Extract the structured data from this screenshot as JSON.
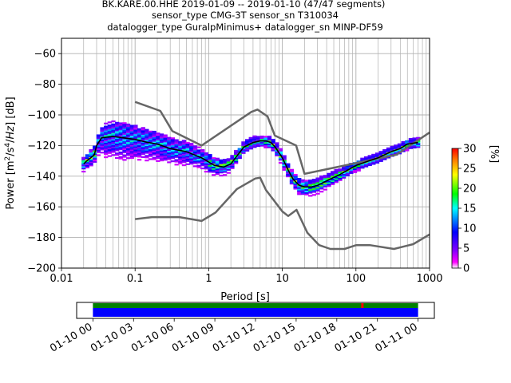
{
  "title": {
    "line1": "BK.KARE.00.HHE   2019-01-09 -- 2019-01-10  (47/47 segments)",
    "line2": "sensor_type CMG-3T sensor_sn T310034",
    "line3": "datalogger_type GuralpMinimus+ datalogger_sn MINP-DF59"
  },
  "chart_data": {
    "type": "heatmap",
    "xlabel": "Period [s]",
    "ylabel": "Power [m²/s⁴/Hz] [dB]",
    "xscale": "log",
    "xlim": [
      0.01,
      1000
    ],
    "ylim": [
      -200,
      -50
    ],
    "xticks": [
      {
        "value": 0.01,
        "label": "0.01"
      },
      {
        "value": 0.1,
        "label": "0.1"
      },
      {
        "value": 1,
        "label": "1"
      },
      {
        "value": 10,
        "label": "10"
      },
      {
        "value": 100,
        "label": "100"
      },
      {
        "value": 1000,
        "label": "1000"
      }
    ],
    "yticks": [
      -60,
      -80,
      -100,
      -120,
      -140,
      -160,
      -180,
      -200
    ],
    "grid": true,
    "colorbar": {
      "label": "[%]",
      "range": [
        0,
        30
      ],
      "ticks": [
        0,
        5,
        10,
        15,
        20,
        25,
        30
      ],
      "colors": [
        "#ffffff",
        "#ff00ff",
        "#8000ff",
        "#0000ff",
        "#00ffff",
        "#00ff00",
        "#ffff00",
        "#ff8000",
        "#ff0000"
      ]
    },
    "noise_model_high": [
      [
        0.1,
        -91.5
      ],
      [
        0.22,
        -97.4
      ],
      [
        0.32,
        -110.5
      ],
      [
        0.8,
        -120
      ],
      [
        3.8,
        -98
      ],
      [
        4.6,
        -96.5
      ],
      [
        6.3,
        -101
      ],
      [
        7.9,
        -113.5
      ],
      [
        15.4,
        -120
      ],
      [
        20,
        -138.5
      ],
      [
        354,
        -126
      ],
      [
        1000,
        -111.5
      ]
    ],
    "noise_model_low": [
      [
        0.1,
        -168
      ],
      [
        0.17,
        -166.7
      ],
      [
        0.4,
        -166.7
      ],
      [
        0.8,
        -169.2
      ],
      [
        1.24,
        -163.7
      ],
      [
        2.4,
        -148.5
      ],
      [
        4.3,
        -141.5
      ],
      [
        5,
        -141
      ],
      [
        6,
        -149
      ],
      [
        10,
        -163
      ],
      [
        12,
        -166
      ],
      [
        15.6,
        -162
      ],
      [
        21.9,
        -177
      ],
      [
        31.6,
        -185
      ],
      [
        45,
        -187.5
      ],
      [
        70,
        -187.5
      ],
      [
        101,
        -185
      ],
      [
        154,
        -185
      ],
      [
        328,
        -187.5
      ],
      [
        600,
        -184.4
      ],
      [
        1000,
        -178
      ]
    ],
    "mode_curve": [
      [
        0.02,
        -132
      ],
      [
        0.022,
        -130
      ],
      [
        0.025,
        -128
      ],
      [
        0.028,
        -126
      ],
      [
        0.03,
        -120
      ],
      [
        0.035,
        -115
      ],
      [
        0.05,
        -114
      ],
      [
        0.07,
        -115
      ],
      [
        0.1,
        -116
      ],
      [
        0.15,
        -118
      ],
      [
        0.2,
        -119
      ],
      [
        0.3,
        -122
      ],
      [
        0.5,
        -124
      ],
      [
        0.8,
        -128
      ],
      [
        1.2,
        -133
      ],
      [
        1.6,
        -134
      ],
      [
        2,
        -132
      ],
      [
        3,
        -121
      ],
      [
        4,
        -118
      ],
      [
        5,
        -117
      ],
      [
        6,
        -117
      ],
      [
        7,
        -118
      ],
      [
        8,
        -121
      ],
      [
        10,
        -128
      ],
      [
        12,
        -136
      ],
      [
        14,
        -142
      ],
      [
        17,
        -146
      ],
      [
        20,
        -147
      ],
      [
        25,
        -147
      ],
      [
        30,
        -146
      ],
      [
        40,
        -143
      ],
      [
        60,
        -139
      ],
      [
        100,
        -133
      ],
      [
        150,
        -130
      ],
      [
        200,
        -128
      ],
      [
        300,
        -124
      ],
      [
        400,
        -122
      ],
      [
        500,
        -119
      ],
      [
        700,
        -118
      ]
    ],
    "spread": [
      [
        0.02,
        4
      ],
      [
        0.03,
        6
      ],
      [
        0.04,
        12
      ],
      [
        0.06,
        14
      ],
      [
        0.1,
        12
      ],
      [
        0.2,
        10
      ],
      [
        0.5,
        8
      ],
      [
        1,
        6
      ],
      [
        2,
        4
      ],
      [
        5,
        3
      ],
      [
        10,
        4
      ],
      [
        20,
        5
      ],
      [
        50,
        4
      ],
      [
        100,
        3
      ],
      [
        700,
        3
      ]
    ]
  },
  "timeline": {
    "labels": [
      "01-10 00",
      "01-10 03",
      "01-10 06",
      "01-10 09",
      "01-10 12",
      "01-10 15",
      "01-10 18",
      "01-10 21",
      "01-11 00"
    ],
    "hours": [
      0,
      3,
      6,
      9,
      12,
      15,
      18,
      21,
      24
    ],
    "range_hours": [
      -1.2,
      25.2
    ],
    "data_range_hours": [
      0,
      24
    ],
    "marker_hour": 19.8,
    "colors": {
      "available": "#0000ff",
      "gap": "#008000",
      "marker": "#ff0000"
    }
  }
}
